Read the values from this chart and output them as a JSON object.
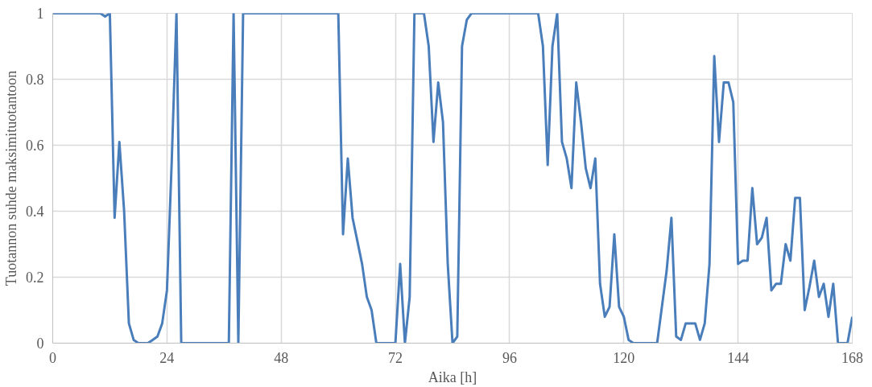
{
  "chart_data": {
    "type": "line",
    "xlabel": "Aika [h]",
    "ylabel": "Tuotannon suhde maksimituotantoon",
    "x": [
      0,
      1,
      2,
      3,
      4,
      5,
      6,
      7,
      8,
      9,
      10,
      11,
      12,
      13,
      14,
      15,
      16,
      17,
      18,
      19,
      20,
      21,
      22,
      23,
      24,
      25,
      26,
      27,
      28,
      29,
      30,
      31,
      32,
      33,
      34,
      35,
      36,
      37,
      38,
      39,
      40,
      41,
      42,
      43,
      44,
      45,
      46,
      47,
      48,
      49,
      50,
      51,
      52,
      53,
      54,
      55,
      56,
      57,
      58,
      59,
      60,
      61,
      62,
      63,
      64,
      65,
      66,
      67,
      68,
      69,
      70,
      71,
      72,
      73,
      74,
      75,
      76,
      77,
      78,
      79,
      80,
      81,
      82,
      83,
      84,
      85,
      86,
      87,
      88,
      89,
      90,
      91,
      92,
      93,
      94,
      95,
      96,
      97,
      98,
      99,
      100,
      101,
      102,
      103,
      104,
      105,
      106,
      107,
      108,
      109,
      110,
      111,
      112,
      113,
      114,
      115,
      116,
      117,
      118,
      119,
      120,
      121,
      122,
      123,
      124,
      125,
      126,
      127,
      128,
      129,
      130,
      131,
      132,
      133,
      134,
      135,
      136,
      137,
      138,
      139,
      140,
      141,
      142,
      143,
      144,
      145,
      146,
      147,
      148,
      149,
      150,
      151,
      152,
      153,
      154,
      155,
      156,
      157,
      158,
      159,
      160,
      161,
      162,
      163,
      164,
      165,
      166,
      167,
      168
    ],
    "series": [
      {
        "color": "#4a7ebb",
        "values": [
          1,
          1,
          1,
          1,
          1,
          1,
          1,
          1,
          1,
          1,
          1,
          0.99,
          1,
          0.38,
          0.61,
          0.4,
          0.06,
          0.01,
          0,
          0,
          0,
          0.01,
          0.02,
          0.06,
          0.16,
          0.55,
          1,
          0,
          0,
          0,
          0,
          0,
          0,
          0,
          0,
          0,
          0,
          0,
          1,
          0,
          1,
          1,
          1,
          1,
          1,
          1,
          1,
          1,
          1,
          1,
          1,
          1,
          1,
          1,
          1,
          1,
          1,
          1,
          1,
          1,
          1,
          0.33,
          0.56,
          0.38,
          0.31,
          0.24,
          0.14,
          0.1,
          0,
          0,
          0,
          0,
          0,
          0.24,
          0,
          0.14,
          1,
          1,
          1,
          0.9,
          0.61,
          0.79,
          0.67,
          0.24,
          0,
          0.02,
          0.9,
          0.98,
          1,
          1,
          1,
          1,
          1,
          1,
          1,
          1,
          1,
          1,
          1,
          1,
          1,
          1,
          1,
          0.9,
          0.54,
          0.9,
          1,
          0.61,
          0.56,
          0.47,
          0.79,
          0.67,
          0.53,
          0.47,
          0.56,
          0.18,
          0.08,
          0.11,
          0.33,
          0.11,
          0.08,
          0.01,
          0,
          0,
          0,
          0,
          0,
          0,
          0.11,
          0.22,
          0.38,
          0.02,
          0.01,
          0.06,
          0.06,
          0.06,
          0.01,
          0.06,
          0.24,
          0.87,
          0.61,
          0.79,
          0.79,
          0.73,
          0.24,
          0.25,
          0.25,
          0.47,
          0.3,
          0.32,
          0.38,
          0.16,
          0.18,
          0.18,
          0.3,
          0.25,
          0.44,
          0.44,
          0.1,
          0.17,
          0.25,
          0.14,
          0.18,
          0.08,
          0.18,
          0,
          0,
          0,
          0.08
        ]
      }
    ],
    "xlim": [
      0,
      168
    ],
    "ylim": [
      0,
      1
    ],
    "xticks": [
      0,
      24,
      48,
      72,
      96,
      120,
      144,
      168
    ],
    "yticks": [
      0,
      {
        "value": 0.2,
        "label": "0.2"
      },
      {
        "value": 0.4,
        "label": "0.4"
      },
      {
        "value": 0.6,
        "label": "0.6"
      },
      {
        "value": 0.8,
        "label": "0.8"
      },
      1
    ],
    "grid": true,
    "marker": "none",
    "line_style": "solid"
  }
}
